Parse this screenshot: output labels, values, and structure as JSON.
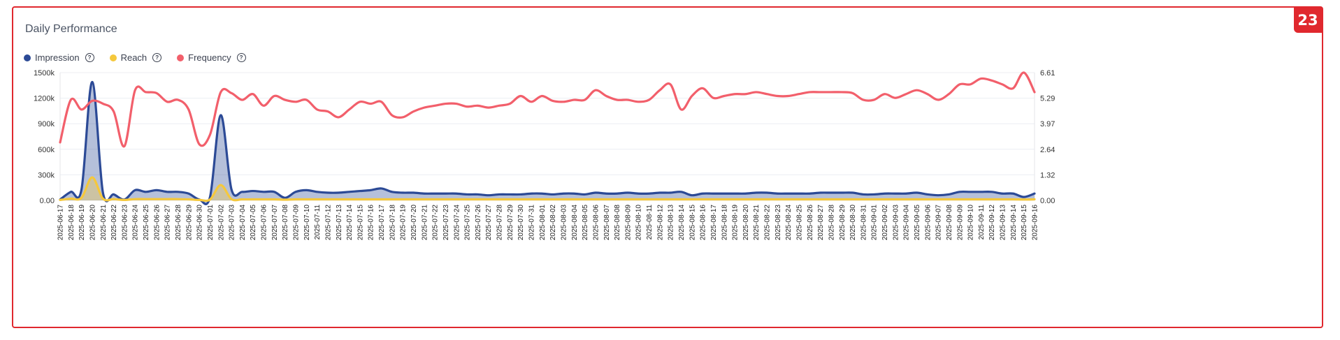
{
  "badge": "23",
  "title": "Daily Performance",
  "legend": [
    {
      "label": "Impression",
      "color": "#2c4a96"
    },
    {
      "label": "Reach",
      "color": "#f5c83c"
    },
    {
      "label": "Frequency",
      "color": "#f25f6b"
    }
  ],
  "help_glyph": "?",
  "chart_data": {
    "type": "line",
    "title": "Daily Performance",
    "start_date": "2025-06-17",
    "end_date": "2025-09-16",
    "left_axis": {
      "ticks": [
        "0.00",
        "300k",
        "600k",
        "900k",
        "1200k",
        "1500k"
      ],
      "min": 0,
      "max": 1500000
    },
    "right_axis": {
      "ticks": [
        "0.00",
        "1.32",
        "2.64",
        "3.97",
        "5.29",
        "6.61"
      ],
      "min": 0,
      "max": 6.61
    },
    "grid": true,
    "legend_position": "top-left",
    "x": [
      "2025-06-17",
      "2025-06-18",
      "2025-06-19",
      "2025-06-20",
      "2025-06-21",
      "2025-06-22",
      "2025-06-23",
      "2025-06-24",
      "2025-06-25",
      "2025-06-26",
      "2025-06-27",
      "2025-06-28",
      "2025-06-29",
      "2025-06-30",
      "2025-07-01",
      "2025-07-02",
      "2025-07-03",
      "2025-07-04",
      "2025-07-05",
      "2025-07-06",
      "2025-07-07",
      "2025-07-08",
      "2025-07-09",
      "2025-07-10",
      "2025-07-11",
      "2025-07-12",
      "2025-07-13",
      "2025-07-14",
      "2025-07-15",
      "2025-07-16",
      "2025-07-17",
      "2025-07-18",
      "2025-07-19",
      "2025-07-20",
      "2025-07-21",
      "2025-07-22",
      "2025-07-23",
      "2025-07-24",
      "2025-07-25",
      "2025-07-26",
      "2025-07-27",
      "2025-07-28",
      "2025-07-29",
      "2025-07-30",
      "2025-07-31",
      "2025-08-01",
      "2025-08-02",
      "2025-08-03",
      "2025-08-04",
      "2025-08-05",
      "2025-08-06",
      "2025-08-07",
      "2025-08-08",
      "2025-08-09",
      "2025-08-10",
      "2025-08-11",
      "2025-08-12",
      "2025-08-13",
      "2025-08-14",
      "2025-08-15",
      "2025-08-16",
      "2025-08-17",
      "2025-08-18",
      "2025-08-19",
      "2025-08-20",
      "2025-08-21",
      "2025-08-22",
      "2025-08-23",
      "2025-08-24",
      "2025-08-25",
      "2025-08-26",
      "2025-08-27",
      "2025-08-28",
      "2025-08-29",
      "2025-08-30",
      "2025-08-31",
      "2025-09-01",
      "2025-09-02",
      "2025-09-03",
      "2025-09-04",
      "2025-09-05",
      "2025-09-06",
      "2025-09-07",
      "2025-09-08",
      "2025-09-09",
      "2025-09-10",
      "2025-09-11",
      "2025-09-12",
      "2025-09-13",
      "2025-09-14",
      "2025-09-15",
      "2025-09-16"
    ],
    "series": [
      {
        "name": "Impression",
        "axis": "left",
        "color": "#2c4a96",
        "fill": true,
        "values": [
          10000,
          100000,
          130000,
          1390000,
          90000,
          70000,
          10000,
          120000,
          100000,
          120000,
          100000,
          100000,
          80000,
          10000,
          40000,
          1000000,
          130000,
          100000,
          110000,
          100000,
          100000,
          30000,
          100000,
          120000,
          100000,
          90000,
          90000,
          100000,
          110000,
          120000,
          140000,
          100000,
          90000,
          90000,
          80000,
          80000,
          80000,
          80000,
          70000,
          70000,
          60000,
          70000,
          70000,
          70000,
          80000,
          80000,
          70000,
          80000,
          80000,
          70000,
          90000,
          80000,
          80000,
          90000,
          80000,
          80000,
          90000,
          90000,
          100000,
          60000,
          80000,
          80000,
          80000,
          80000,
          80000,
          90000,
          90000,
          80000,
          80000,
          80000,
          80000,
          90000,
          90000,
          90000,
          90000,
          70000,
          70000,
          80000,
          80000,
          80000,
          90000,
          70000,
          60000,
          70000,
          100000,
          100000,
          100000,
          100000,
          80000,
          80000,
          40000,
          80000
        ]
      },
      {
        "name": "Reach",
        "axis": "left",
        "color": "#f5c83c",
        "fill": true,
        "values": [
          5000,
          20000,
          30000,
          270000,
          20000,
          15000,
          5000,
          15000,
          15000,
          15000,
          15000,
          15000,
          12000,
          5000,
          10000,
          180000,
          15000,
          12000,
          12000,
          12000,
          12000,
          8000,
          12000,
          12000,
          12000,
          12000,
          12000,
          12000,
          12000,
          12000,
          12000,
          12000,
          12000,
          12000,
          12000,
          12000,
          12000,
          12000,
          12000,
          12000,
          12000,
          12000,
          12000,
          12000,
          12000,
          12000,
          12000,
          12000,
          12000,
          12000,
          12000,
          12000,
          12000,
          12000,
          12000,
          12000,
          12000,
          12000,
          12000,
          12000,
          12000,
          12000,
          12000,
          12000,
          12000,
          12000,
          12000,
          12000,
          12000,
          12000,
          12000,
          12000,
          12000,
          12000,
          12000,
          12000,
          12000,
          12000,
          12000,
          12000,
          12000,
          12000,
          12000,
          12000,
          12000,
          12000,
          12000,
          12000,
          12000,
          12000,
          10000,
          12000
        ]
      },
      {
        "name": "Frequency",
        "axis": "right",
        "color": "#f25f6b",
        "fill": false,
        "values": [
          3.0,
          5.2,
          4.7,
          5.15,
          5.0,
          4.6,
          2.8,
          5.7,
          5.6,
          5.55,
          5.1,
          5.2,
          4.7,
          2.9,
          3.4,
          5.6,
          5.55,
          5.2,
          5.5,
          4.9,
          5.4,
          5.2,
          5.1,
          5.2,
          4.7,
          4.6,
          4.3,
          4.7,
          5.1,
          5.0,
          5.1,
          4.4,
          4.3,
          4.6,
          4.8,
          4.9,
          5.0,
          5.0,
          4.85,
          4.9,
          4.8,
          4.9,
          5.0,
          5.4,
          5.1,
          5.4,
          5.15,
          5.1,
          5.2,
          5.2,
          5.7,
          5.4,
          5.2,
          5.2,
          5.1,
          5.2,
          5.7,
          6.0,
          4.7,
          5.4,
          5.8,
          5.3,
          5.4,
          5.5,
          5.5,
          5.6,
          5.5,
          5.4,
          5.4,
          5.5,
          5.6,
          5.6,
          5.6,
          5.6,
          5.55,
          5.2,
          5.2,
          5.5,
          5.3,
          5.5,
          5.7,
          5.5,
          5.2,
          5.5,
          6.0,
          6.0,
          6.3,
          6.2,
          6.0,
          5.8,
          6.61,
          5.6
        ]
      }
    ]
  }
}
